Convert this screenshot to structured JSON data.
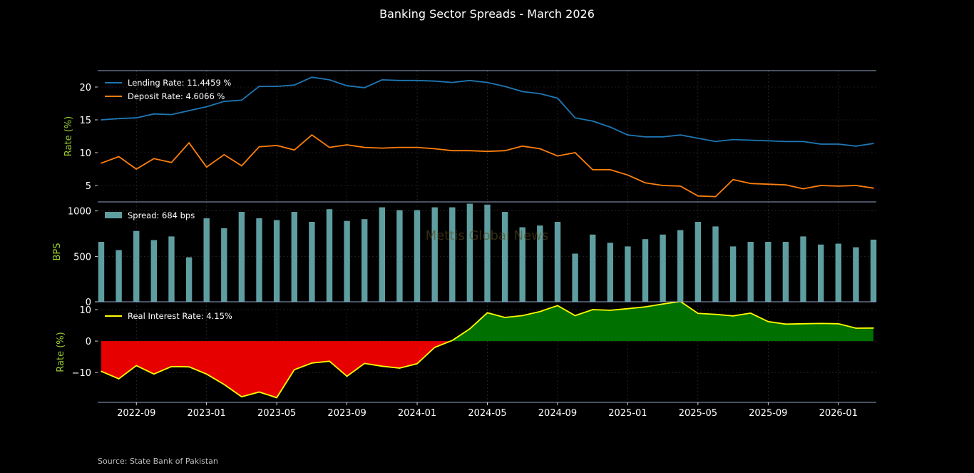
{
  "title": "Banking Sector Spreads - March 2026",
  "source": "Source: State Bank of Pakistan",
  "watermark": "Mettis Global News",
  "colors": {
    "lending": "#1f77b4",
    "deposit": "#ff7f0e",
    "spread_bar": "#5f9ea0",
    "real_rate_line": "#ffff00",
    "negative_fill": "#e60000",
    "positive_fill": "#007000",
    "axis_label": "#9acd32",
    "spine": "#8fa3c4"
  },
  "chart_data": [
    {
      "type": "line",
      "ylabel": "Rate (%)",
      "ylim": [
        2.5,
        22.5
      ],
      "yticks": [
        5,
        10,
        15,
        20
      ],
      "grid": true,
      "legend_position": "top-left",
      "x": [
        "2022-07",
        "2022-08",
        "2022-09",
        "2022-10",
        "2022-11",
        "2022-12",
        "2023-01",
        "2023-02",
        "2023-03",
        "2023-04",
        "2023-05",
        "2023-06",
        "2023-07",
        "2023-08",
        "2023-09",
        "2023-10",
        "2023-11",
        "2023-12",
        "2024-01",
        "2024-02",
        "2024-03",
        "2024-04",
        "2024-05",
        "2024-06",
        "2024-07",
        "2024-08",
        "2024-09",
        "2024-10",
        "2024-11",
        "2024-12",
        "2025-01",
        "2025-02",
        "2025-03",
        "2025-04",
        "2025-05",
        "2025-06",
        "2025-07",
        "2025-08",
        "2025-09",
        "2025-10",
        "2025-11",
        "2025-12",
        "2026-01",
        "2026-02",
        "2026-03"
      ],
      "series": [
        {
          "name": "Lending Rate: 11.4459 %",
          "values": [
            15.0,
            15.2,
            15.3,
            15.9,
            15.8,
            16.4,
            17.0,
            17.8,
            18.0,
            20.1,
            20.1,
            20.3,
            21.5,
            21.1,
            20.2,
            19.9,
            21.1,
            21.0,
            21.0,
            20.9,
            20.7,
            21.0,
            20.7,
            20.1,
            19.3,
            19.0,
            18.3,
            15.3,
            14.8,
            13.9,
            12.7,
            12.4,
            12.4,
            12.7,
            12.2,
            11.7,
            12.0,
            11.9,
            11.8,
            11.7,
            11.7,
            11.3,
            11.3,
            11.0,
            11.4
          ]
        },
        {
          "name": "Deposit Rate: 4.6066 %",
          "values": [
            8.4,
            9.4,
            7.5,
            9.1,
            8.5,
            11.5,
            7.8,
            9.7,
            8.0,
            10.9,
            11.1,
            10.4,
            12.7,
            10.8,
            11.2,
            10.8,
            10.7,
            10.8,
            10.8,
            10.6,
            10.3,
            10.3,
            10.2,
            10.3,
            11.0,
            10.6,
            9.5,
            10.0,
            7.4,
            7.4,
            6.6,
            5.4,
            5.0,
            4.9,
            3.4,
            3.3,
            5.9,
            5.3,
            5.2,
            5.1,
            4.5,
            5.0,
            4.9,
            5.0,
            4.6
          ]
        }
      ]
    },
    {
      "type": "bar",
      "ylabel": "BPS",
      "ylim": [
        0,
        1100
      ],
      "yticks": [
        0,
        500,
        1000
      ],
      "grid": true,
      "legend_position": "top-left",
      "series": [
        {
          "name": "Spread: 684 bps",
          "values": [
            660,
            570,
            780,
            680,
            720,
            490,
            920,
            810,
            990,
            920,
            900,
            990,
            880,
            1020,
            890,
            910,
            1040,
            1010,
            1010,
            1040,
            1040,
            1080,
            1070,
            990,
            820,
            840,
            880,
            530,
            740,
            650,
            610,
            690,
            740,
            790,
            880,
            830,
            610,
            660,
            660,
            660,
            720,
            630,
            640,
            600,
            684
          ]
        }
      ]
    },
    {
      "type": "area",
      "ylabel": "Rate (%)",
      "ylim": [
        -19.5,
        12.5
      ],
      "yticks": [
        -10,
        0,
        10
      ],
      "grid": true,
      "legend_position": "top-left",
      "series": [
        {
          "name": "Real Interest Rate: 4.15%",
          "values": [
            -9.6,
            -12.0,
            -7.8,
            -10.5,
            -8.1,
            -8.2,
            -10.5,
            -13.8,
            -17.7,
            -16.2,
            -18.0,
            -9.1,
            -7.0,
            -6.4,
            -11.2,
            -7.1,
            -8.0,
            -8.6,
            -7.2,
            -2.0,
            0.2,
            3.9,
            9.0,
            7.5,
            8.1,
            9.4,
            11.3,
            8.1,
            10.0,
            9.8,
            10.3,
            10.9,
            11.8,
            12.6,
            8.8,
            8.5,
            8.0,
            8.9,
            6.2,
            5.4,
            5.5,
            5.6,
            5.5,
            4.1,
            4.15
          ]
        }
      ]
    }
  ],
  "x_tick_labels": [
    "2022-09",
    "2023-01",
    "2023-05",
    "2023-09",
    "2024-01",
    "2024-05",
    "2024-09",
    "2025-01",
    "2025-05",
    "2025-09",
    "2026-01"
  ]
}
